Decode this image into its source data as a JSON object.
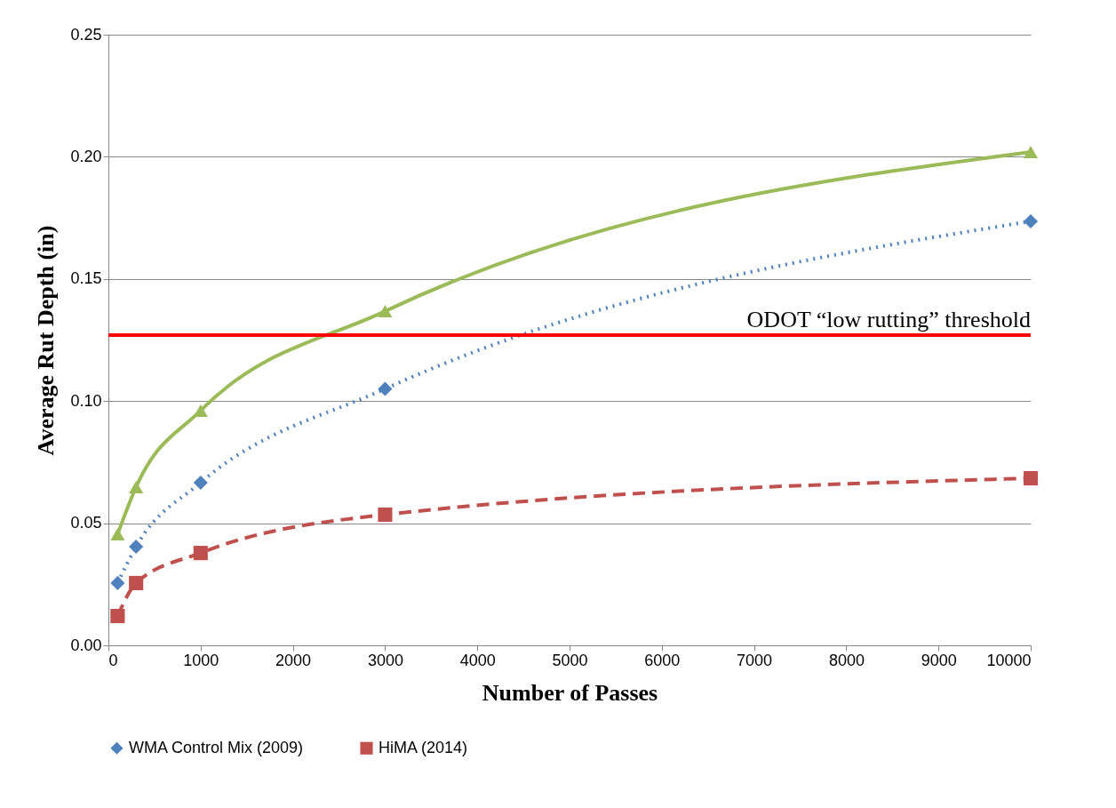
{
  "chart_data": {
    "type": "line",
    "xlabel": "Number of Passes",
    "ylabel": "Average Rut Depth (in)",
    "x": [
      100,
      300,
      1000,
      3000,
      10000
    ],
    "series": [
      {
        "name": "WMA Control Mix (2009)",
        "color": "#4f81bd",
        "values": [
          0.0255,
          0.0404,
          0.0666,
          0.105,
          0.1736
        ],
        "line_style": "dotted",
        "marker": "diamond"
      },
      {
        "name": "HiMA (2014)",
        "color": "#c0504d",
        "values": [
          0.012,
          0.0255,
          0.0378,
          0.0535,
          0.0684
        ],
        "line_style": "dashed",
        "marker": "square"
      },
      {
        "color": "#9bbb59",
        "values": [
          0.0455,
          0.0648,
          0.0961,
          0.1368,
          0.202
        ],
        "line_style": "solid",
        "marker": "triangle"
      }
    ],
    "xlim": [
      0,
      10000
    ],
    "xticks": [
      0,
      1000,
      2000,
      3000,
      4000,
      5000,
      6000,
      7000,
      8000,
      9000,
      10000
    ],
    "ylim": [
      0,
      0.25
    ],
    "yticks": [
      {
        "value": 0,
        "label": "0.00"
      },
      0.05,
      {
        "value": 0.1,
        "label": "0.10"
      },
      0.15,
      {
        "value": 0.2,
        "label": "0.20"
      },
      0.25
    ],
    "ref_lines": [
      {
        "axis": "y",
        "value": 0.127,
        "label": "ODOT “low rutting” threshold",
        "color": "#ff0000"
      }
    ],
    "grid": "y",
    "legend": "bottom"
  }
}
